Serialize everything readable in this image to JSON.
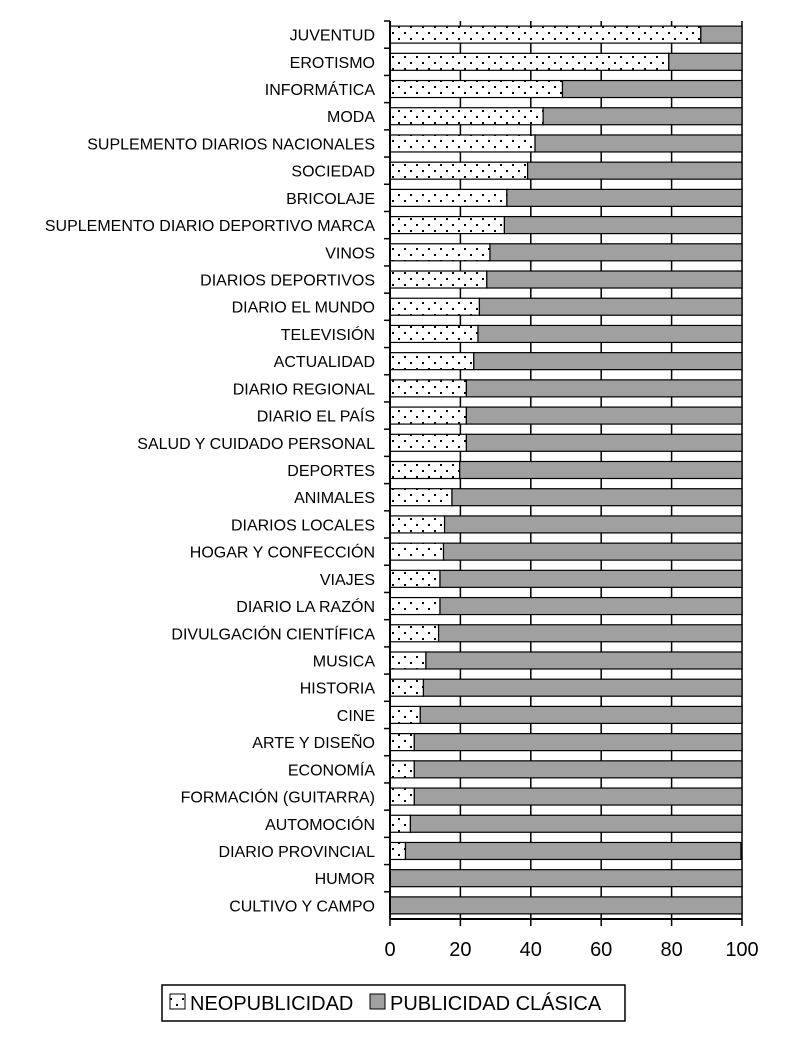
{
  "chart_data": {
    "type": "bar",
    "orientation": "horizontal",
    "stacked": true,
    "categories": [
      "JUVENTUD",
      "EROTISMO",
      "INFORMÁTICA",
      "MODA",
      "SUPLEMENTO DIARIOS NACIONALES",
      "SOCIEDAD",
      "BRICOLAJE",
      "SUPLEMENTO DIARIO DEPORTIVO MARCA",
      "VINOS",
      "DIARIOS DEPORTIVOS",
      "DIARIO EL MUNDO",
      "TELEVISIÓN",
      "ACTUALIDAD",
      "DIARIO REGIONAL",
      "DIARIO EL PAÍS",
      "SALUD Y CUIDADO PERSONAL",
      "DEPORTES",
      "ANIMALES",
      "DIARIOS LOCALES",
      "HOGAR Y CONFECCIÓN",
      "VIAJES",
      "DIARIO LA RAZÓN",
      "DIVULGACIÓN CIENTÍFICA",
      "MUSICA",
      "HISTORIA",
      "CINE",
      "ARTE Y DISEÑO",
      "ECONOMÍA",
      "FORMACIÓN (GUITARRA)",
      "AUTOMOCIÓN",
      "DIARIO PROVINCIAL",
      "HUMOR",
      "CULTIVO Y CAMPO"
    ],
    "series": [
      {
        "name": "NEOPUBLICIDAD",
        "color": "#ffffff",
        "pattern": "dotted",
        "values": [
          88.3,
          79.2,
          49,
          43.5,
          41.2,
          39.1,
          33.2,
          32.5,
          28.4,
          27.5,
          25.4,
          25.0,
          23.8,
          21.7,
          21.7,
          21.7,
          19.8,
          17.6,
          15.5,
          15.2,
          14.2,
          14.2,
          13.8,
          10.2,
          9.5,
          8.6,
          6.9,
          6.9,
          6.9,
          5.8,
          4.4,
          0,
          0
        ]
      },
      {
        "name": "PUBLICIDAD CLÁSICA",
        "color": "#a0a0a0",
        "pattern": "solid",
        "values": [
          11.7,
          20.8,
          51,
          56.5,
          58.8,
          60.9,
          66.8,
          67.5,
          71.6,
          72.5,
          74.6,
          75.0,
          76.2,
          78.3,
          78.3,
          78.3,
          80.2,
          82.4,
          84.5,
          84.8,
          85.8,
          85.8,
          86.2,
          89.8,
          90.5,
          91.4,
          93.1,
          93.1,
          93.1,
          94.2,
          95.3,
          100,
          100
        ]
      }
    ],
    "xlim": [
      0,
      100
    ],
    "xticks": [
      "0",
      "20",
      "40",
      "60",
      "80",
      "100"
    ],
    "grid": "vertical",
    "legend": "bottom",
    "title": "",
    "xlabel": "",
    "ylabel": ""
  }
}
